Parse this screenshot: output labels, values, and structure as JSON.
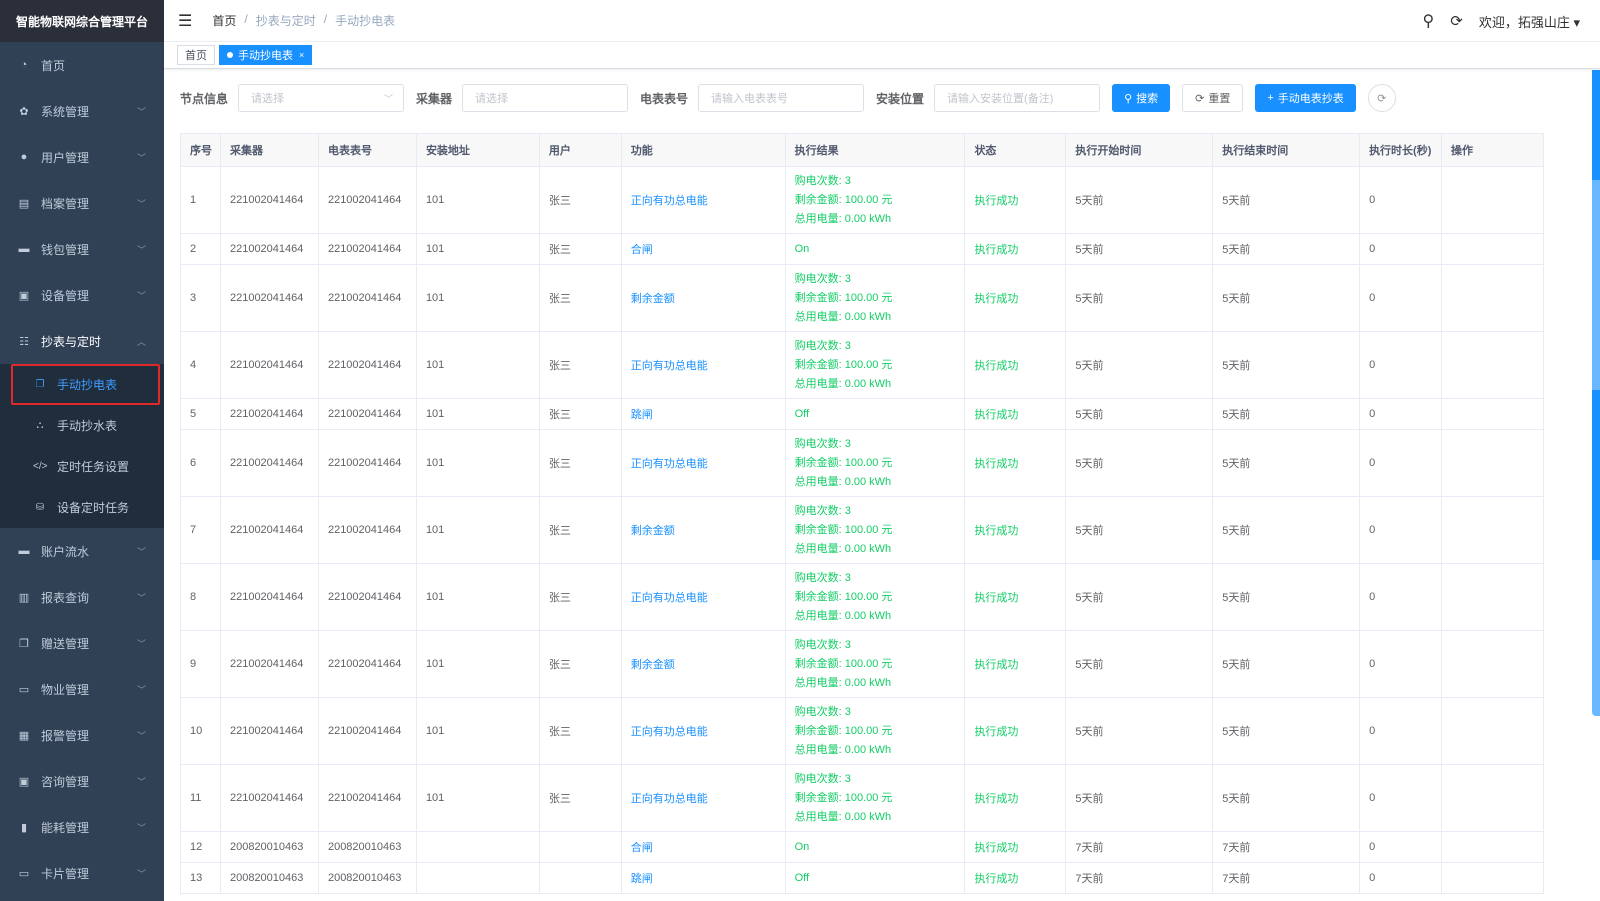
{
  "app_title": "智能物联网综合管理平台",
  "sidebar": {
    "items_top": [
      {
        "label": "首页",
        "icon": "dashboard-icon",
        "glyph": "◔"
      },
      {
        "label": "系统管理",
        "icon": "gear-icon",
        "glyph": "✿",
        "chev": true
      },
      {
        "label": "用户管理",
        "icon": "user-icon",
        "glyph": "●",
        "chev": true
      },
      {
        "label": "档案管理",
        "icon": "document-icon",
        "glyph": "▤",
        "chev": true
      },
      {
        "label": "钱包管理",
        "icon": "wallet-icon",
        "glyph": "▬",
        "chev": true
      },
      {
        "label": "设备管理",
        "icon": "device-icon",
        "glyph": "▣",
        "chev": true
      }
    ],
    "open_group": {
      "label": "抄表与定时",
      "icon": "list-icon",
      "glyph": "☷"
    },
    "sub_items": [
      {
        "label": "手动抄电表",
        "icon": "copy-icon",
        "glyph": "❐",
        "active": true
      },
      {
        "label": "手动抄水表",
        "icon": "tree-icon",
        "glyph": "⛬"
      },
      {
        "label": "定时任务设置",
        "icon": "code-icon",
        "glyph": "</>"
      },
      {
        "label": "设备定时任务",
        "icon": "database-icon",
        "glyph": "⛁"
      }
    ],
    "items_bottom": [
      {
        "label": "账户流水",
        "icon": "card-icon",
        "glyph": "▬"
      },
      {
        "label": "报表查询",
        "icon": "report-icon",
        "glyph": "▥"
      },
      {
        "label": "赠送管理",
        "icon": "gift-icon",
        "glyph": "❐"
      },
      {
        "label": "物业管理",
        "icon": "building-icon",
        "glyph": "▭"
      },
      {
        "label": "报警管理",
        "icon": "alarm-icon",
        "glyph": "▦"
      },
      {
        "label": "咨询管理",
        "icon": "consult-icon",
        "glyph": "▣"
      },
      {
        "label": "能耗管理",
        "icon": "bar-chart-icon",
        "glyph": "▮"
      },
      {
        "label": "卡片管理",
        "icon": "folder-icon",
        "glyph": "▭"
      }
    ]
  },
  "breadcrumb": [
    "首页",
    "抄表与定时",
    "手动抄电表"
  ],
  "header": {
    "welcome": "欢迎，拓强山庄"
  },
  "tabs": [
    {
      "label": "首页"
    },
    {
      "label": "手动抄电表",
      "active": true
    }
  ],
  "filters": {
    "node_label": "节点信息",
    "node_placeholder": "请选择",
    "collector_label": "采集器",
    "collector_placeholder": "请选择",
    "meter_label": "电表表号",
    "meter_placeholder": "请输入电表表号",
    "location_label": "安装位置",
    "location_placeholder": "请输入安装位置(备注)",
    "search": "搜索",
    "reset": "重置",
    "manual": "手动电表抄表"
  },
  "table": {
    "columns": [
      "序号",
      "采集器",
      "电表表号",
      "安装地址",
      "用户",
      "功能",
      "执行结果",
      "状态",
      "执行开始时间",
      "执行结束时间",
      "执行时长(秒)",
      "操作"
    ],
    "rows": [
      [
        "1",
        "221002041464",
        "221002041464",
        "101",
        "张三",
        "正向有功总电能",
        [
          "购电次数: 3",
          "剩余金额: 100.00 元",
          "总用电量: 0.00 kWh"
        ],
        "执行成功",
        "5天前",
        "5天前",
        "0"
      ],
      [
        "2",
        "221002041464",
        "221002041464",
        "101",
        "张三",
        "合闸",
        [
          "On"
        ],
        "执行成功",
        "5天前",
        "5天前",
        "0"
      ],
      [
        "3",
        "221002041464",
        "221002041464",
        "101",
        "张三",
        "剩余金额",
        [
          "购电次数: 3",
          "剩余金额: 100.00 元",
          "总用电量: 0.00 kWh"
        ],
        "执行成功",
        "5天前",
        "5天前",
        "0"
      ],
      [
        "4",
        "221002041464",
        "221002041464",
        "101",
        "张三",
        "正向有功总电能",
        [
          "购电次数: 3",
          "剩余金额: 100.00 元",
          "总用电量: 0.00 kWh"
        ],
        "执行成功",
        "5天前",
        "5天前",
        "0"
      ],
      [
        "5",
        "221002041464",
        "221002041464",
        "101",
        "张三",
        "跳闸",
        [
          "Off"
        ],
        "执行成功",
        "5天前",
        "5天前",
        "0"
      ],
      [
        "6",
        "221002041464",
        "221002041464",
        "101",
        "张三",
        "正向有功总电能",
        [
          "购电次数: 3",
          "剩余金额: 100.00 元",
          "总用电量: 0.00 kWh"
        ],
        "执行成功",
        "5天前",
        "5天前",
        "0"
      ],
      [
        "7",
        "221002041464",
        "221002041464",
        "101",
        "张三",
        "剩余金额",
        [
          "购电次数: 3",
          "剩余金额: 100.00 元",
          "总用电量: 0.00 kWh"
        ],
        "执行成功",
        "5天前",
        "5天前",
        "0"
      ],
      [
        "8",
        "221002041464",
        "221002041464",
        "101",
        "张三",
        "正向有功总电能",
        [
          "购电次数: 3",
          "剩余金额: 100.00 元",
          "总用电量: 0.00 kWh"
        ],
        "执行成功",
        "5天前",
        "5天前",
        "0"
      ],
      [
        "9",
        "221002041464",
        "221002041464",
        "101",
        "张三",
        "剩余金额",
        [
          "购电次数: 3",
          "剩余金额: 100.00 元",
          "总用电量: 0.00 kWh"
        ],
        "执行成功",
        "5天前",
        "5天前",
        "0"
      ],
      [
        "10",
        "221002041464",
        "221002041464",
        "101",
        "张三",
        "正向有功总电能",
        [
          "购电次数: 3",
          "剩余金额: 100.00 元",
          "总用电量: 0.00 kWh"
        ],
        "执行成功",
        "5天前",
        "5天前",
        "0"
      ],
      [
        "11",
        "221002041464",
        "221002041464",
        "101",
        "张三",
        "正向有功总电能",
        [
          "购电次数: 3",
          "剩余金额: 100.00 元",
          "总用电量: 0.00 kWh"
        ],
        "执行成功",
        "5天前",
        "5天前",
        "0"
      ],
      [
        "12",
        "200820010463",
        "200820010463",
        "",
        "",
        "合闸",
        [
          "On"
        ],
        "执行成功",
        "7天前",
        "7天前",
        "0"
      ],
      [
        "13",
        "200820010463",
        "200820010463",
        "",
        "",
        "跳闸",
        [
          "Off"
        ],
        "执行成功",
        "7天前",
        "7天前",
        "0"
      ]
    ]
  }
}
